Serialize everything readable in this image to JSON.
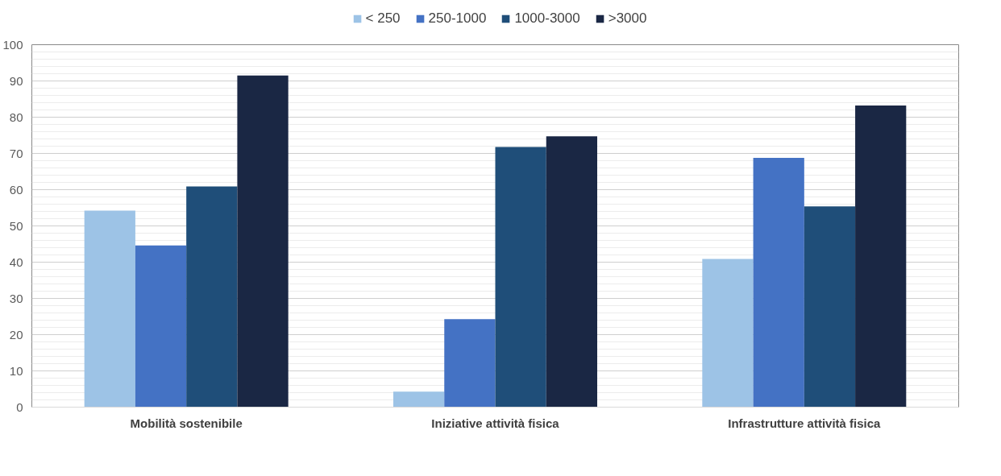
{
  "chart_data": {
    "type": "bar",
    "categories": [
      "Mobilità sostenibile",
      "Iniziative attività fisica",
      "Infrastrutture attività fisica"
    ],
    "series": [
      {
        "name": "< 250",
        "color": "#9dc3e6",
        "values": [
          54.2,
          4.3,
          40.9
        ]
      },
      {
        "name": "250-1000",
        "color": "#4472c4",
        "values": [
          44.6,
          24.3,
          68.8
        ]
      },
      {
        "name": "1000-3000",
        "color": "#1f4e79",
        "values": [
          60.9,
          71.8,
          55.4
        ]
      },
      {
        "name": ">3000",
        "color": "#1a2744",
        "values": [
          91.5,
          74.7,
          83.2
        ]
      }
    ],
    "ylim": [
      0,
      100
    ],
    "yticks": [
      0,
      {
        "value": 2,
        "label": null
      },
      {
        "value": 4,
        "label": null
      },
      {
        "value": 6,
        "label": null
      },
      {
        "value": 8,
        "label": null
      },
      10,
      {
        "value": 12,
        "label": null
      },
      {
        "value": 14,
        "label": null
      },
      {
        "value": 16,
        "label": null
      },
      {
        "value": 18,
        "label": null
      },
      20,
      {
        "value": 22,
        "label": null
      },
      {
        "value": 24,
        "label": null
      },
      {
        "value": 26,
        "label": null
      },
      {
        "value": 28,
        "label": null
      },
      30,
      {
        "value": 32,
        "label": null
      },
      {
        "value": 34,
        "label": null
      },
      {
        "value": 36,
        "label": null
      },
      {
        "value": 38,
        "label": null
      },
      40,
      {
        "value": 42,
        "label": null
      },
      {
        "value": 44,
        "label": null
      },
      {
        "value": 46,
        "label": null
      },
      {
        "value": 48,
        "label": null
      },
      50,
      {
        "value": 52,
        "label": null
      },
      {
        "value": 54,
        "label": null
      },
      {
        "value": 56,
        "label": null
      },
      {
        "value": 58,
        "label": null
      },
      60,
      {
        "value": 62,
        "label": null
      },
      {
        "value": 64,
        "label": null
      },
      {
        "value": 66,
        "label": null
      },
      {
        "value": 68,
        "label": null
      },
      70,
      {
        "value": 72,
        "label": null
      },
      {
        "value": 74,
        "label": null
      },
      {
        "value": 76,
        "label": null
      },
      {
        "value": 78,
        "label": null
      },
      80,
      {
        "value": 82,
        "label": null
      },
      {
        "value": 84,
        "label": null
      },
      {
        "value": 86,
        "label": null
      },
      {
        "value": 88,
        "label": null
      },
      90,
      {
        "value": 92,
        "label": null
      },
      {
        "value": 94,
        "label": null
      },
      {
        "value": 96,
        "label": null
      },
      {
        "value": 98,
        "label": null
      },
      100
    ],
    "grid": "y",
    "legend": "top"
  }
}
